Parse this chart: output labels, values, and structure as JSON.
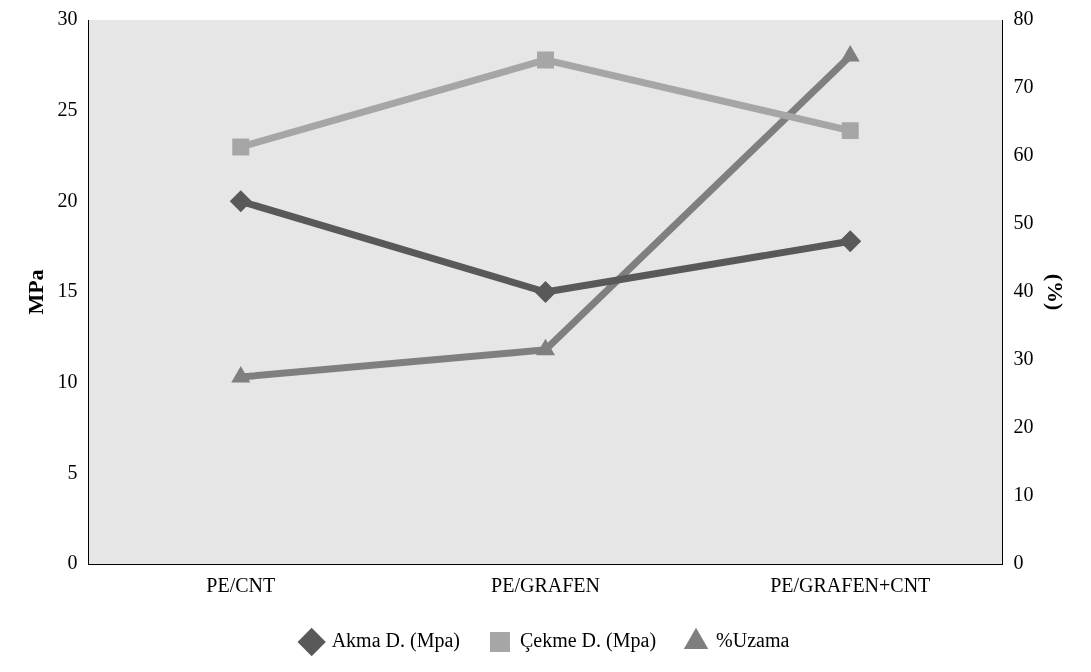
{
  "chart_data": {
    "type": "line",
    "ylabel": "MPa",
    "y2label": "(%)",
    "categories": [
      "PE/CNT",
      "PE/GRAFEN",
      "PE/GRAFEN+CNT"
    ],
    "series": [
      {
        "name": "Akma D. (Mpa)",
        "color": "#595959",
        "values": [
          20,
          15,
          17.8
        ],
        "marker": "diamond"
      },
      {
        "name": "Çekme D. (Mpa)",
        "color": "#a6a6a6",
        "values": [
          23,
          27.8,
          23.9
        ],
        "marker": "square"
      },
      {
        "name": "%Uzama",
        "color": "#7f7f7f",
        "values": [
          27.5,
          31.5,
          74.7
        ],
        "marker": "triangle",
        "axis": "y2"
      }
    ],
    "ylim": [
      0,
      30
    ],
    "yticks": [
      0,
      5,
      10,
      15,
      20,
      25,
      30
    ],
    "y2lim": [
      0,
      80
    ],
    "y2ticks": [
      0,
      10,
      20,
      30,
      40,
      50,
      60,
      70,
      80
    ],
    "grid": false,
    "legend": "bottom"
  }
}
